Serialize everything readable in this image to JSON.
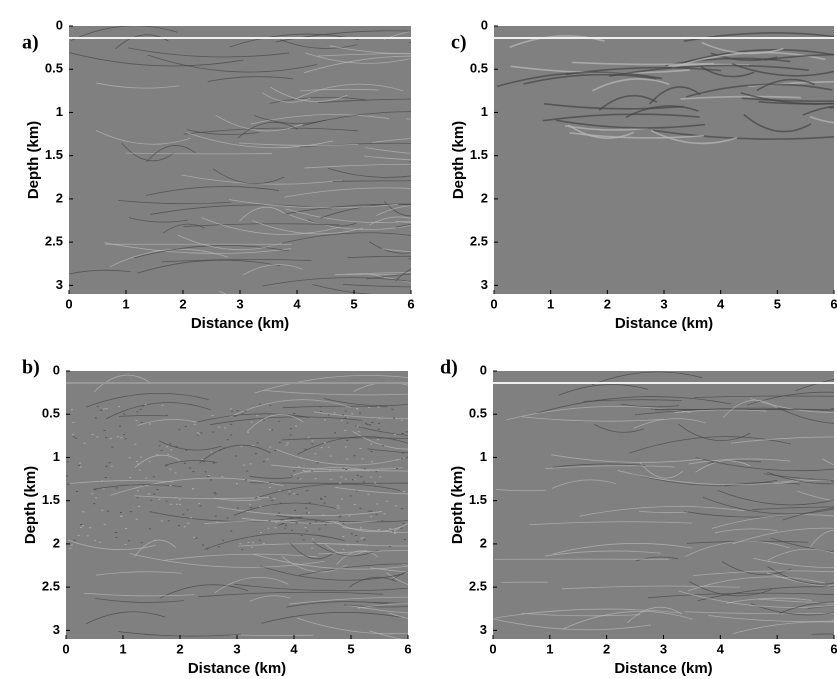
{
  "chart_data": [
    {
      "type": "image",
      "panel_label": "a)",
      "xlabel": "Distance (km)",
      "ylabel": "Depth (km)",
      "xlim": [
        0,
        6
      ],
      "ylim": [
        0,
        3.1
      ],
      "y_inverted": true,
      "xticks": [
        0,
        1,
        2,
        3,
        4,
        5,
        6
      ],
      "yticks": [
        0,
        0.5,
        1,
        1.5,
        2,
        2.5,
        3
      ]
    },
    {
      "type": "image",
      "panel_label": "b)",
      "xlabel": "Distance (km)",
      "ylabel": "Depth (km)",
      "xlim": [
        0,
        6
      ],
      "ylim": [
        0,
        3.1
      ],
      "y_inverted": true,
      "xticks": [
        0,
        1,
        2,
        3,
        4,
        5,
        6
      ],
      "yticks": [
        0,
        0.5,
        1,
        1.5,
        2,
        2.5,
        3
      ]
    },
    {
      "type": "image",
      "panel_label": "c)",
      "xlabel": "Distance (km)",
      "ylabel": "Depth (km)",
      "xlim": [
        0,
        6
      ],
      "ylim": [
        0,
        3.1
      ],
      "y_inverted": true,
      "xticks": [
        0,
        1,
        2,
        3,
        4,
        5,
        6
      ],
      "yticks": [
        0,
        0.5,
        1,
        1.5,
        2,
        2.5,
        3
      ]
    },
    {
      "type": "image",
      "panel_label": "d)",
      "xlabel": "Distance (km)",
      "ylabel": "Depth (km)",
      "xlim": [
        0,
        6
      ],
      "ylim": [
        0,
        3.1
      ],
      "y_inverted": true,
      "xticks": [
        0,
        1,
        2,
        3,
        4,
        5,
        6
      ],
      "yticks": [
        0,
        0.5,
        1,
        1.5,
        2,
        2.5,
        3
      ]
    }
  ]
}
